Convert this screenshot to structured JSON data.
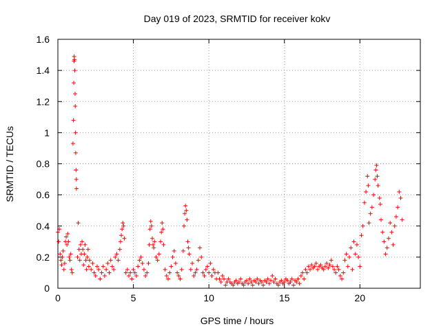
{
  "chart_data": {
    "type": "scatter",
    "title": "Day 019 of 2023, SRMTID for receiver kokv",
    "xlabel": "GPS time / hours",
    "ylabel": "SRMTID / TECUs",
    "xlim": [
      0,
      24
    ],
    "ylim": [
      0,
      1.6
    ],
    "xticks": [
      0,
      5,
      10,
      15,
      20
    ],
    "xtick_labels": [
      "0",
      "5",
      "10",
      "15",
      "20"
    ],
    "yticks": [
      0,
      0.2,
      0.4,
      0.6,
      0.8,
      1,
      1.2,
      1.4,
      1.6
    ],
    "ytick_labels": [
      "0",
      "0.2",
      "0.4",
      "0.6",
      "0.8",
      "1",
      "1.2",
      "1.4",
      "1.6"
    ],
    "grid": true,
    "marker": "+",
    "series": [
      {
        "name": "SRMTID",
        "color": "#ff0000",
        "points": [
          [
            0.0,
            0.36
          ],
          [
            0.05,
            0.3
          ],
          [
            0.1,
            0.38
          ],
          [
            0.15,
            0.22
          ],
          [
            0.2,
            0.18
          ],
          [
            0.25,
            0.15
          ],
          [
            0.3,
            0.2
          ],
          [
            0.35,
            0.24
          ],
          [
            0.4,
            0.12
          ],
          [
            0.45,
            0.16
          ],
          [
            0.5,
            0.3
          ],
          [
            0.55,
            0.33
          ],
          [
            0.6,
            0.28
          ],
          [
            0.65,
            0.35
          ],
          [
            0.7,
            0.3
          ],
          [
            0.75,
            0.2
          ],
          [
            0.8,
            0.18
          ],
          [
            0.85,
            0.22
          ],
          [
            0.9,
            0.12
          ],
          [
            0.95,
            0.1
          ],
          [
            1.0,
            0.93
          ],
          [
            1.03,
            1.08
          ],
          [
            1.05,
            1.32
          ],
          [
            1.07,
            1.46
          ],
          [
            1.08,
            1.49
          ],
          [
            1.1,
            1.47
          ],
          [
            1.12,
            1.4
          ],
          [
            1.14,
            1.25
          ],
          [
            1.15,
            1.17
          ],
          [
            1.17,
            1.0
          ],
          [
            1.18,
            0.87
          ],
          [
            1.2,
            0.76
          ],
          [
            1.22,
            0.7
          ],
          [
            1.23,
            0.64
          ],
          [
            1.35,
            0.42
          ],
          [
            1.3,
            0.2
          ],
          [
            1.4,
            0.25
          ],
          [
            1.45,
            0.18
          ],
          [
            1.5,
            0.28
          ],
          [
            1.55,
            0.22
          ],
          [
            1.6,
            0.3
          ],
          [
            1.65,
            0.25
          ],
          [
            1.7,
            0.15
          ],
          [
            1.75,
            0.22
          ],
          [
            1.8,
            0.28
          ],
          [
            1.85,
            0.18
          ],
          [
            1.9,
            0.12
          ],
          [
            1.95,
            0.2
          ],
          [
            2.0,
            0.25
          ],
          [
            2.05,
            0.14
          ],
          [
            2.1,
            0.18
          ],
          [
            2.2,
            0.12
          ],
          [
            2.3,
            0.16
          ],
          [
            2.4,
            0.1
          ],
          [
            2.5,
            0.08
          ],
          [
            2.6,
            0.14
          ],
          [
            2.7,
            0.12
          ],
          [
            2.8,
            0.06
          ],
          [
            2.9,
            0.1
          ],
          [
            3.0,
            0.14
          ],
          [
            3.1,
            0.08
          ],
          [
            3.2,
            0.12
          ],
          [
            3.3,
            0.16
          ],
          [
            3.4,
            0.1
          ],
          [
            3.5,
            0.18
          ],
          [
            3.6,
            0.14
          ],
          [
            3.7,
            0.12
          ],
          [
            3.8,
            0.2
          ],
          [
            3.9,
            0.22
          ],
          [
            4.0,
            0.18
          ],
          [
            4.1,
            0.25
          ],
          [
            4.15,
            0.3
          ],
          [
            4.2,
            0.34
          ],
          [
            4.25,
            0.38
          ],
          [
            4.3,
            0.42
          ],
          [
            4.35,
            0.4
          ],
          [
            4.4,
            0.32
          ],
          [
            4.5,
            0.1
          ],
          [
            4.6,
            0.12
          ],
          [
            4.7,
            0.08
          ],
          [
            4.8,
            0.1
          ],
          [
            4.9,
            0.06
          ],
          [
            5.0,
            0.12
          ],
          [
            5.1,
            0.1
          ],
          [
            5.2,
            0.08
          ],
          [
            5.3,
            0.14
          ],
          [
            5.4,
            0.18
          ],
          [
            5.5,
            0.2
          ],
          [
            5.6,
            0.16
          ],
          [
            5.7,
            0.12
          ],
          [
            5.8,
            0.08
          ],
          [
            5.9,
            0.1
          ],
          [
            6.0,
            0.16
          ],
          [
            6.05,
            0.28
          ],
          [
            6.1,
            0.38
          ],
          [
            6.15,
            0.43
          ],
          [
            6.2,
            0.4
          ],
          [
            6.25,
            0.32
          ],
          [
            6.3,
            0.28
          ],
          [
            6.35,
            0.26
          ],
          [
            6.4,
            0.3
          ],
          [
            6.5,
            0.2
          ],
          [
            6.6,
            0.18
          ],
          [
            6.7,
            0.22
          ],
          [
            6.8,
            0.3
          ],
          [
            6.85,
            0.36
          ],
          [
            6.9,
            0.42
          ],
          [
            6.95,
            0.38
          ],
          [
            7.0,
            0.28
          ],
          [
            7.1,
            0.12
          ],
          [
            7.2,
            0.08
          ],
          [
            7.3,
            0.06
          ],
          [
            7.4,
            0.1
          ],
          [
            7.5,
            0.14
          ],
          [
            7.6,
            0.2
          ],
          [
            7.7,
            0.24
          ],
          [
            7.8,
            0.16
          ],
          [
            7.9,
            0.1
          ],
          [
            8.0,
            0.08
          ],
          [
            8.1,
            0.06
          ],
          [
            8.2,
            0.12
          ],
          [
            8.3,
            0.24
          ],
          [
            8.35,
            0.4
          ],
          [
            8.4,
            0.48
          ],
          [
            8.45,
            0.53
          ],
          [
            8.5,
            0.5
          ],
          [
            8.55,
            0.44
          ],
          [
            8.6,
            0.3
          ],
          [
            8.65,
            0.26
          ],
          [
            8.7,
            0.22
          ],
          [
            8.8,
            0.12
          ],
          [
            8.9,
            0.16
          ],
          [
            9.0,
            0.08
          ],
          [
            9.1,
            0.1
          ],
          [
            9.2,
            0.12
          ],
          [
            9.3,
            0.18
          ],
          [
            9.4,
            0.26
          ],
          [
            9.5,
            0.2
          ],
          [
            9.6,
            0.1
          ],
          [
            9.7,
            0.08
          ],
          [
            9.8,
            0.12
          ],
          [
            9.9,
            0.14
          ],
          [
            10.0,
            0.1
          ],
          [
            10.1,
            0.16
          ],
          [
            10.2,
            0.08
          ],
          [
            10.3,
            0.12
          ],
          [
            10.4,
            0.1
          ],
          [
            10.5,
            0.06
          ],
          [
            10.6,
            0.1
          ],
          [
            10.7,
            0.06
          ],
          [
            10.8,
            0.04
          ],
          [
            10.9,
            0.08
          ],
          [
            11.0,
            0.06
          ],
          [
            11.1,
            0.02
          ],
          [
            11.2,
            0.04
          ],
          [
            11.3,
            0.06
          ],
          [
            11.4,
            0.04
          ],
          [
            11.5,
            0.03
          ],
          [
            11.6,
            0.02
          ],
          [
            11.7,
            0.04
          ],
          [
            11.8,
            0.05
          ],
          [
            11.9,
            0.03
          ],
          [
            12.0,
            0.04
          ],
          [
            12.1,
            0.06
          ],
          [
            12.2,
            0.03
          ],
          [
            12.3,
            0.02
          ],
          [
            12.4,
            0.04
          ],
          [
            12.5,
            0.05
          ],
          [
            12.6,
            0.03
          ],
          [
            12.7,
            0.06
          ],
          [
            12.8,
            0.04
          ],
          [
            12.9,
            0.02
          ],
          [
            13.0,
            0.05
          ],
          [
            13.1,
            0.04
          ],
          [
            13.2,
            0.06
          ],
          [
            13.3,
            0.03
          ],
          [
            13.4,
            0.05
          ],
          [
            13.5,
            0.04
          ],
          [
            13.6,
            0.02
          ],
          [
            13.7,
            0.05
          ],
          [
            13.8,
            0.04
          ],
          [
            13.9,
            0.06
          ],
          [
            14.0,
            0.03
          ],
          [
            14.1,
            0.05
          ],
          [
            14.2,
            0.08
          ],
          [
            14.3,
            0.04
          ],
          [
            14.4,
            0.06
          ],
          [
            14.5,
            0.03
          ],
          [
            14.6,
            0.02
          ],
          [
            14.7,
            0.04
          ],
          [
            14.8,
            0.05
          ],
          [
            14.9,
            0.03
          ],
          [
            15.0,
            0.04
          ],
          [
            15.1,
            0.06
          ],
          [
            15.2,
            0.05
          ],
          [
            15.3,
            0.03
          ],
          [
            15.4,
            0.04
          ],
          [
            15.5,
            0.06
          ],
          [
            15.6,
            0.02
          ],
          [
            15.7,
            0.05
          ],
          [
            15.8,
            0.04
          ],
          [
            15.9,
            0.06
          ],
          [
            16.0,
            0.03
          ],
          [
            16.1,
            0.08
          ],
          [
            16.2,
            0.1
          ],
          [
            16.3,
            0.06
          ],
          [
            16.4,
            0.12
          ],
          [
            16.5,
            0.1
          ],
          [
            16.6,
            0.14
          ],
          [
            16.7,
            0.12
          ],
          [
            16.8,
            0.15
          ],
          [
            16.9,
            0.13
          ],
          [
            17.0,
            0.14
          ],
          [
            17.1,
            0.16
          ],
          [
            17.2,
            0.12
          ],
          [
            17.3,
            0.14
          ],
          [
            17.4,
            0.15
          ],
          [
            17.5,
            0.13
          ],
          [
            17.6,
            0.12
          ],
          [
            17.7,
            0.14
          ],
          [
            17.8,
            0.16
          ],
          [
            17.9,
            0.13
          ],
          [
            18.0,
            0.15
          ],
          [
            18.1,
            0.18
          ],
          [
            18.2,
            0.14
          ],
          [
            18.3,
            0.12
          ],
          [
            18.4,
            0.1
          ],
          [
            18.5,
            0.14
          ],
          [
            18.6,
            0.12
          ],
          [
            18.7,
            0.08
          ],
          [
            18.8,
            0.06
          ],
          [
            18.9,
            0.1
          ],
          [
            19.0,
            0.18
          ],
          [
            19.1,
            0.22
          ],
          [
            19.2,
            0.14
          ],
          [
            19.3,
            0.2
          ],
          [
            19.4,
            0.26
          ],
          [
            19.5,
            0.12
          ],
          [
            19.6,
            0.3
          ],
          [
            19.7,
            0.22
          ],
          [
            19.8,
            0.28
          ],
          [
            19.9,
            0.2
          ],
          [
            20.0,
            0.14
          ],
          [
            20.1,
            0.34
          ],
          [
            20.2,
            0.4
          ],
          [
            20.3,
            0.55
          ],
          [
            20.4,
            0.62
          ],
          [
            20.5,
            0.72
          ],
          [
            20.55,
            0.66
          ],
          [
            20.6,
            0.42
          ],
          [
            20.7,
            0.48
          ],
          [
            20.8,
            0.52
          ],
          [
            20.9,
            0.6
          ],
          [
            21.0,
            0.7
          ],
          [
            21.05,
            0.76
          ],
          [
            21.1,
            0.79
          ],
          [
            21.15,
            0.72
          ],
          [
            21.2,
            0.66
          ],
          [
            21.3,
            0.58
          ],
          [
            21.35,
            0.54
          ],
          [
            21.4,
            0.44
          ],
          [
            21.5,
            0.36
          ],
          [
            21.6,
            0.3
          ],
          [
            21.7,
            0.22
          ],
          [
            21.8,
            0.26
          ],
          [
            21.9,
            0.32
          ],
          [
            22.0,
            0.42
          ],
          [
            22.1,
            0.36
          ],
          [
            22.2,
            0.28
          ],
          [
            22.3,
            0.4
          ],
          [
            22.4,
            0.46
          ],
          [
            22.5,
            0.52
          ],
          [
            22.6,
            0.62
          ],
          [
            22.7,
            0.58
          ],
          [
            22.8,
            0.44
          ]
        ]
      }
    ]
  }
}
